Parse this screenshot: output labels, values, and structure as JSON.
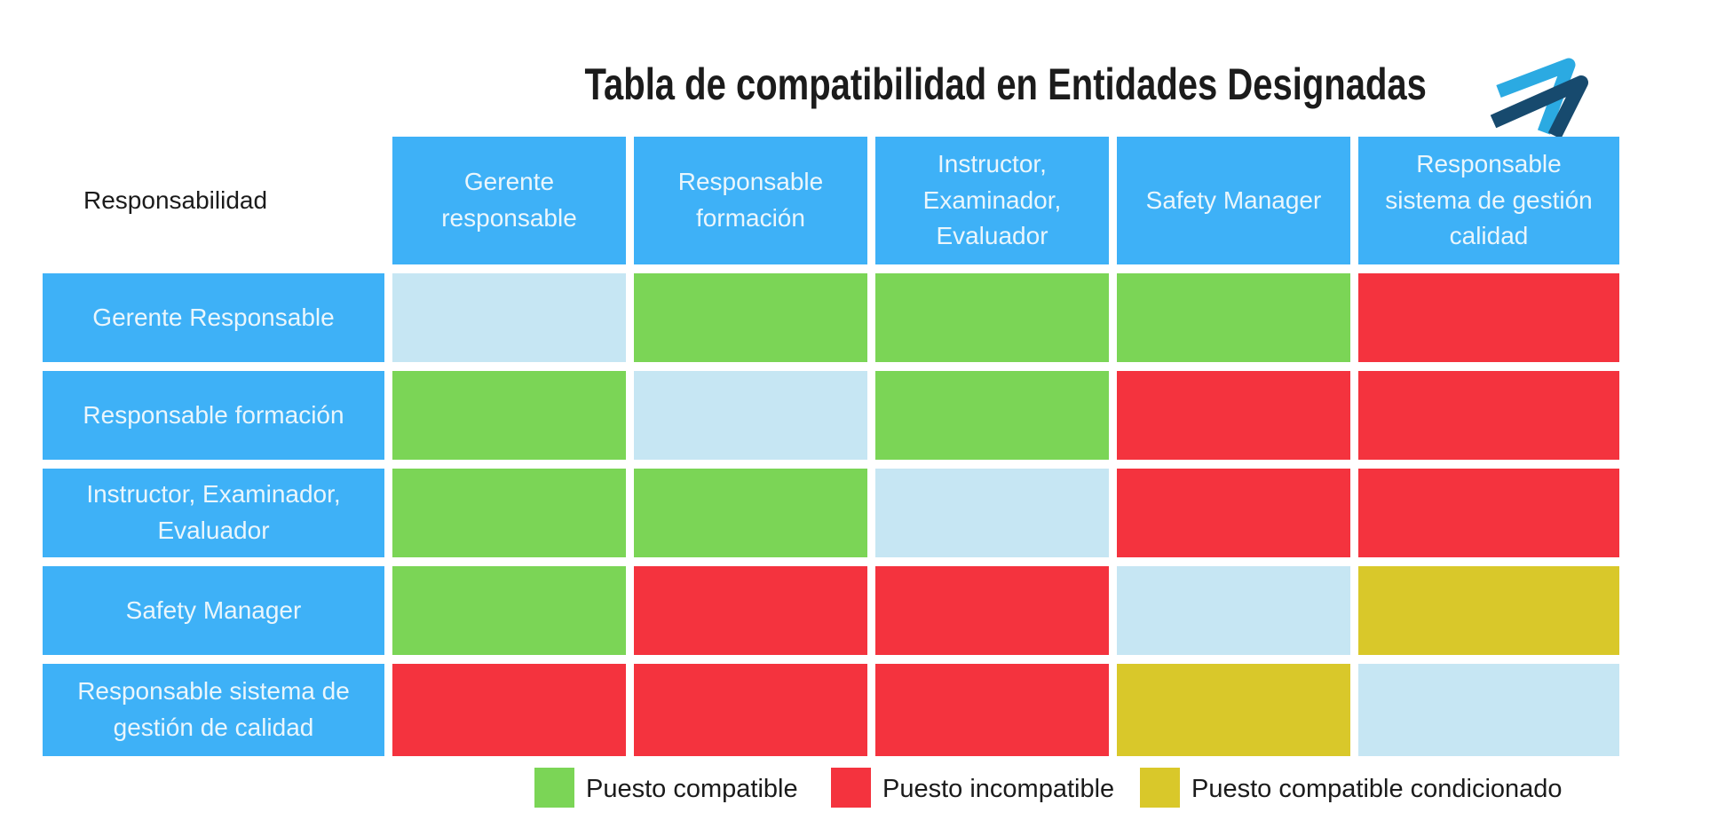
{
  "title": "Tabla de compatibilidad en Entidades Designadas",
  "corner_label": "Responsabilidad",
  "logo": {
    "name": "double-arrow-logo",
    "light_color": "#2BAAE2",
    "dark_color": "#174A6E"
  },
  "colors": {
    "header_bg": "#3EB1F7",
    "cell_text": "#EAF6FC",
    "title_text": "#1B1B1B",
    "compatible": "#7BD556",
    "incompatible": "#F4333E",
    "conditional": "#D9C82A",
    "self": "#C6E6F3"
  },
  "columns": [
    "Gerente\nresponsable",
    "Responsable\nformación",
    "Instructor,\nExaminador,\nEvaluador",
    "Safety Manager",
    "Responsable\nsistema de gestión\ncalidad"
  ],
  "rows": [
    {
      "label": "Gerente Responsable",
      "cells": [
        "self",
        "compatible",
        "compatible",
        "compatible",
        "incompatible"
      ]
    },
    {
      "label": "Responsable formación",
      "cells": [
        "compatible",
        "self",
        "compatible",
        "incompatible",
        "incompatible"
      ]
    },
    {
      "label": "Instructor, Examinador,\nEvaluador",
      "cells": [
        "compatible",
        "compatible",
        "self",
        "incompatible",
        "incompatible"
      ]
    },
    {
      "label": "Safety Manager",
      "cells": [
        "compatible",
        "incompatible",
        "incompatible",
        "self",
        "conditional"
      ]
    },
    {
      "label": "Responsable sistema de\ngestión de calidad",
      "cells": [
        "incompatible",
        "incompatible",
        "incompatible",
        "conditional",
        "self"
      ]
    }
  ],
  "legend": [
    {
      "key": "compatible",
      "label": "Puesto compatible"
    },
    {
      "key": "incompatible",
      "label": "Puesto incompatible"
    },
    {
      "key": "conditional",
      "label": "Puesto compatible condicionado"
    }
  ],
  "chart_data": {
    "type": "heatmap",
    "title": "Tabla de compatibilidad en Entidades Designadas",
    "x_categories": [
      "Gerente responsable",
      "Responsable formación",
      "Instructor, Examinador, Evaluador",
      "Safety Manager",
      "Responsable sistema de gestión calidad"
    ],
    "y_categories": [
      "Gerente Responsable",
      "Responsable formación",
      "Instructor, Examinador, Evaluador",
      "Safety Manager",
      "Responsable sistema de gestión de calidad"
    ],
    "values": [
      [
        "self",
        "compatible",
        "compatible",
        "compatible",
        "incompatible"
      ],
      [
        "compatible",
        "self",
        "compatible",
        "incompatible",
        "incompatible"
      ],
      [
        "compatible",
        "compatible",
        "self",
        "incompatible",
        "incompatible"
      ],
      [
        "compatible",
        "incompatible",
        "incompatible",
        "self",
        "conditional"
      ],
      [
        "incompatible",
        "incompatible",
        "incompatible",
        "conditional",
        "self"
      ]
    ],
    "value_colors": {
      "compatible": "#7BD556",
      "incompatible": "#F4333E",
      "conditional": "#D9C82A",
      "self": "#C6E6F3"
    },
    "legend_entries": [
      "Puesto compatible",
      "Puesto incompatible",
      "Puesto compatible condicionado"
    ],
    "legend_position": "bottom",
    "grid": false
  }
}
